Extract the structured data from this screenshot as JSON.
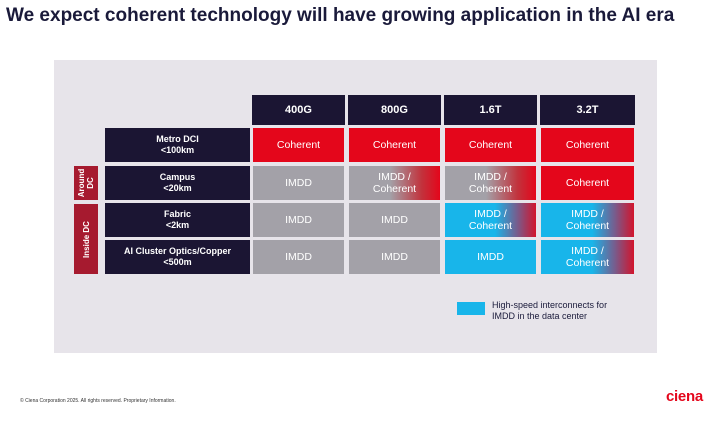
{
  "title": "We expect coherent technology will have growing application in the AI era",
  "columns": [
    "400G",
    "800G",
    "1.6T",
    "3.2T"
  ],
  "groups": [
    {
      "label": "Around DC"
    },
    {
      "label": "Inside DC"
    }
  ],
  "rows": [
    {
      "name_line1": "Metro DCI",
      "name_line2": "<100km",
      "cells": [
        {
          "line1": "Coherent",
          "line2": "",
          "kind": "coherent"
        },
        {
          "line1": "Coherent",
          "line2": "",
          "kind": "coherent"
        },
        {
          "line1": "Coherent",
          "line2": "",
          "kind": "coherent"
        },
        {
          "line1": "Coherent",
          "line2": "",
          "kind": "coherent"
        }
      ]
    },
    {
      "name_line1": "Campus",
      "name_line2": "<20km",
      "cells": [
        {
          "line1": "IMDD",
          "line2": "",
          "kind": "imdd"
        },
        {
          "line1": "IMDD /",
          "line2": "Coherent",
          "kind": "imdd-coherent"
        },
        {
          "line1": "IMDD /",
          "line2": "Coherent",
          "kind": "imdd-coherent"
        },
        {
          "line1": "Coherent",
          "line2": "",
          "kind": "coherent"
        }
      ]
    },
    {
      "name_line1": "Fabric",
      "name_line2": "<2km",
      "cells": [
        {
          "line1": "IMDD",
          "line2": "",
          "kind": "imdd"
        },
        {
          "line1": "IMDD",
          "line2": "",
          "kind": "imdd"
        },
        {
          "line1": "IMDD /",
          "line2": "Coherent",
          "kind": "hs-coherent"
        },
        {
          "line1": "IMDD /",
          "line2": "Coherent",
          "kind": "hs-coherent"
        }
      ]
    },
    {
      "name_line1": "AI Cluster Optics/Copper",
      "name_line2": "<500m",
      "cells": [
        {
          "line1": "IMDD",
          "line2": "",
          "kind": "imdd"
        },
        {
          "line1": "IMDD",
          "line2": "",
          "kind": "imdd"
        },
        {
          "line1": "IMDD",
          "line2": "",
          "kind": "hs"
        },
        {
          "line1": "IMDD /",
          "line2": "Coherent",
          "kind": "hs-coherent"
        }
      ]
    }
  ],
  "legend": {
    "line1": "High-speed interconnects for",
    "line2": "IMDD in the data center",
    "color": "#18b5ea"
  },
  "colors": {
    "coherent": "#e4061b",
    "imdd": "#a3a1a8",
    "high_speed": "#18b5ea",
    "header": "#1b1533",
    "group": "#a61a2f"
  },
  "footer": "© Ciena Corporation 2025. All rights reserved. Proprietary Information.",
  "logo": "ciena"
}
